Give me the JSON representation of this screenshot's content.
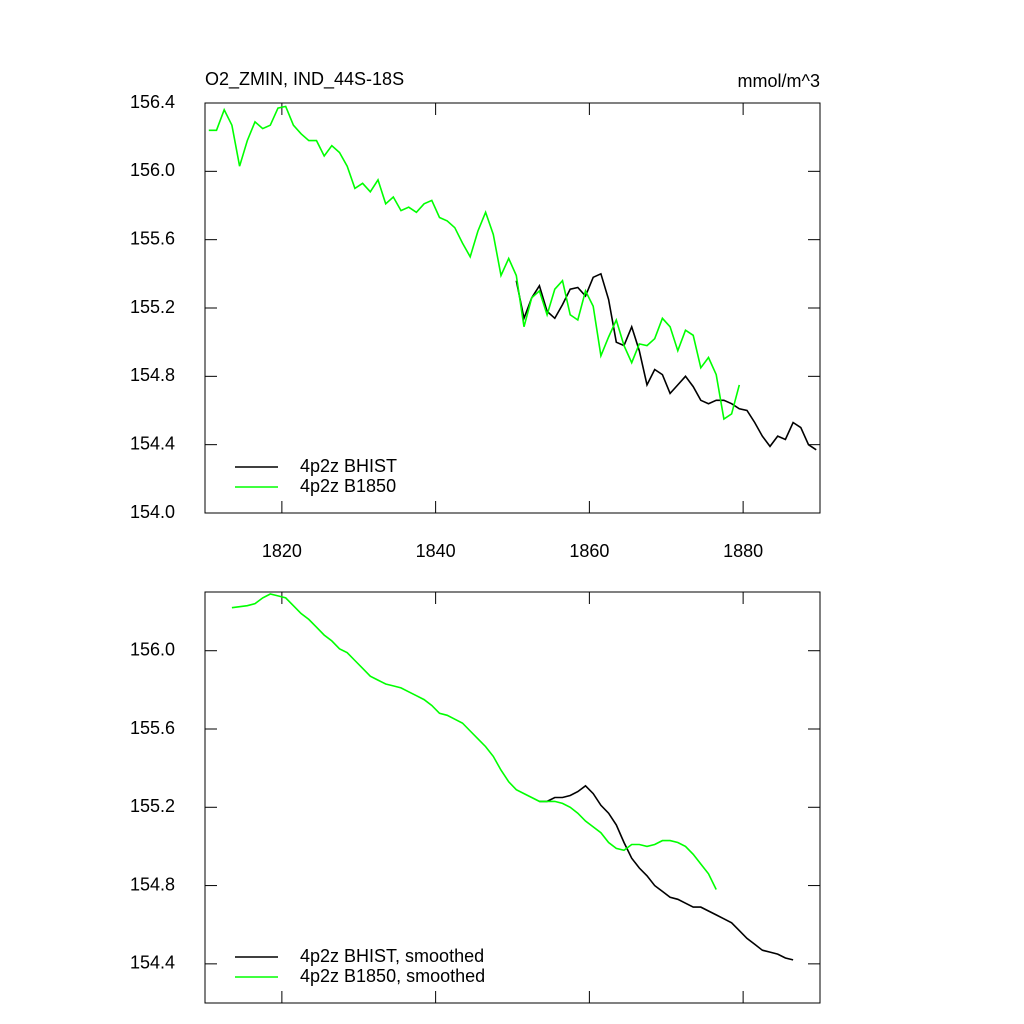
{
  "chart_data": [
    {
      "type": "line",
      "title": "O2_ZMIN, IND_44S-18S",
      "unit_label": "mmol/m^3",
      "xlim": [
        1810,
        1890
      ],
      "xticks": [
        1820,
        1840,
        1860,
        1880
      ],
      "xtick_labels": true,
      "ylim": [
        154.0,
        156.4
      ],
      "yticks": [
        {
          "value": 154.0,
          "label": "154.0"
        },
        154.4,
        154.8,
        {
          "value": 155.2,
          "label": "155.2"
        },
        155.6,
        {
          "value": 156.0,
          "label": "156.0"
        },
        156.4
      ],
      "legend_position": "lower left",
      "series": [
        {
          "name": "4p2z BHIST",
          "color": "#000000",
          "x": [
            1850.5,
            1851.5,
            1852.5,
            1853.5,
            1854.5,
            1855.5,
            1856.5,
            1857.5,
            1858.5,
            1859.5,
            1860.5,
            1861.5,
            1862.5,
            1863.5,
            1864.5,
            1865.5,
            1866.5,
            1867.5,
            1868.5,
            1869.5,
            1870.5,
            1871.5,
            1872.5,
            1873.5,
            1874.5,
            1875.5,
            1876.5,
            1877.5,
            1878.5,
            1879.5,
            1880.5,
            1881.5,
            1882.5,
            1883.5,
            1884.5,
            1885.5,
            1886.5,
            1887.5,
            1888.5,
            1889.5
          ],
          "values": [
            155.36,
            155.14,
            155.26,
            155.33,
            155.18,
            155.14,
            155.22,
            155.31,
            155.32,
            155.27,
            155.38,
            155.4,
            155.25,
            155.0,
            154.98,
            155.09,
            154.95,
            154.75,
            154.84,
            154.81,
            154.7,
            154.75,
            154.8,
            154.74,
            154.66,
            154.64,
            154.66,
            154.66,
            154.64,
            154.61,
            154.6,
            154.53,
            154.45,
            154.39,
            154.45,
            154.43,
            154.53,
            154.5,
            154.4,
            154.37
          ]
        },
        {
          "name": "4p2z B1850",
          "color": "#00ff00",
          "x": [
            1810.5,
            1811.5,
            1812.5,
            1813.5,
            1814.5,
            1815.5,
            1816.5,
            1817.5,
            1818.5,
            1819.5,
            1820.5,
            1821.5,
            1822.5,
            1823.5,
            1824.5,
            1825.5,
            1826.5,
            1827.5,
            1828.5,
            1829.5,
            1830.5,
            1831.5,
            1832.5,
            1833.5,
            1834.5,
            1835.5,
            1836.5,
            1837.5,
            1838.5,
            1839.5,
            1840.5,
            1841.5,
            1842.5,
            1843.5,
            1844.5,
            1845.5,
            1846.5,
            1847.5,
            1848.5,
            1849.5,
            1850.5,
            1851.5,
            1852.5,
            1853.5,
            1854.5,
            1855.5,
            1856.5,
            1857.5,
            1858.5,
            1859.5,
            1860.5,
            1861.5,
            1862.5,
            1863.5,
            1864.5,
            1865.5,
            1866.5,
            1867.5,
            1868.5,
            1869.5,
            1870.5,
            1871.5,
            1872.5,
            1873.5,
            1874.5,
            1875.5,
            1876.5,
            1877.5,
            1878.5,
            1879.5
          ],
          "values": [
            156.24,
            156.24,
            156.36,
            156.27,
            156.03,
            156.18,
            156.29,
            156.25,
            156.27,
            156.37,
            156.38,
            156.27,
            156.22,
            156.18,
            156.18,
            156.09,
            156.15,
            156.11,
            156.03,
            155.9,
            155.93,
            155.88,
            155.95,
            155.81,
            155.85,
            155.77,
            155.79,
            155.76,
            155.81,
            155.83,
            155.73,
            155.71,
            155.67,
            155.58,
            155.5,
            155.65,
            155.76,
            155.63,
            155.39,
            155.49,
            155.39,
            155.09,
            155.26,
            155.3,
            155.16,
            155.31,
            155.36,
            155.16,
            155.13,
            155.3,
            155.21,
            154.92,
            155.03,
            155.13,
            154.98,
            154.88,
            154.99,
            154.98,
            155.02,
            155.14,
            155.09,
            154.95,
            155.07,
            155.04,
            154.85,
            154.91,
            154.81,
            154.55,
            154.58,
            154.75
          ]
        }
      ]
    },
    {
      "type": "line",
      "xlim": [
        1810,
        1890
      ],
      "xticks": [
        1820,
        1840,
        1860,
        1880
      ],
      "xtick_labels": false,
      "ylim": [
        154.2,
        156.3
      ],
      "yticks": [
        154.4,
        154.8,
        {
          "value": 155.2,
          "label": "155.2"
        },
        155.6,
        {
          "value": 156.0,
          "label": "156.0"
        }
      ],
      "legend_position": "lower left",
      "series": [
        {
          "name": "4p2z BHIST, smoothed",
          "color": "#000000",
          "x": [
            1853.5,
            1854.5,
            1855.5,
            1856.5,
            1857.5,
            1858.5,
            1859.5,
            1860.5,
            1861.5,
            1862.5,
            1863.5,
            1864.5,
            1865.5,
            1866.5,
            1867.5,
            1868.5,
            1869.5,
            1870.5,
            1871.5,
            1872.5,
            1873.5,
            1874.5,
            1875.5,
            1876.5,
            1877.5,
            1878.5,
            1879.5,
            1880.5,
            1881.5,
            1882.5,
            1883.5,
            1884.5,
            1885.5,
            1886.5
          ],
          "values": [
            155.23,
            155.23,
            155.25,
            155.25,
            155.26,
            155.28,
            155.31,
            155.27,
            155.21,
            155.17,
            155.11,
            155.02,
            154.94,
            154.89,
            154.85,
            154.8,
            154.77,
            154.74,
            154.73,
            154.71,
            154.69,
            154.69,
            154.67,
            154.65,
            154.63,
            154.61,
            154.57,
            154.53,
            154.5,
            154.47,
            154.46,
            154.45,
            154.43,
            154.42
          ]
        },
        {
          "name": "4p2z B1850, smoothed",
          "color": "#00ff00",
          "x": [
            1813.5,
            1815.5,
            1816.5,
            1817.5,
            1818.5,
            1819.5,
            1820.5,
            1821.5,
            1822.5,
            1823.5,
            1824.5,
            1825.5,
            1826.5,
            1827.5,
            1828.5,
            1829.5,
            1830.5,
            1831.5,
            1832.5,
            1833.5,
            1834.5,
            1835.5,
            1836.5,
            1837.5,
            1838.5,
            1839.5,
            1840.5,
            1841.5,
            1842.5,
            1843.5,
            1844.5,
            1845.5,
            1846.5,
            1847.5,
            1848.5,
            1849.5,
            1850.5,
            1851.5,
            1852.5,
            1853.5,
            1854.5,
            1855.5,
            1856.5,
            1857.5,
            1858.5,
            1859.5,
            1860.5,
            1861.5,
            1862.5,
            1863.5,
            1864.5,
            1865.5,
            1866.5,
            1867.5,
            1868.5,
            1869.5,
            1870.5,
            1871.5,
            1872.5,
            1873.5,
            1874.5,
            1875.5,
            1876.5
          ],
          "values": [
            156.22,
            156.23,
            156.24,
            156.27,
            156.29,
            156.28,
            156.27,
            156.23,
            156.19,
            156.16,
            156.12,
            156.08,
            156.05,
            156.01,
            155.99,
            155.95,
            155.91,
            155.87,
            155.85,
            155.83,
            155.82,
            155.81,
            155.79,
            155.77,
            155.75,
            155.72,
            155.68,
            155.67,
            155.65,
            155.63,
            155.59,
            155.55,
            155.51,
            155.46,
            155.39,
            155.33,
            155.29,
            155.27,
            155.25,
            155.23,
            155.23,
            155.23,
            155.22,
            155.2,
            155.17,
            155.13,
            155.1,
            155.07,
            155.02,
            154.99,
            154.98,
            155.01,
            155.01,
            155.0,
            155.01,
            155.03,
            155.03,
            155.02,
            155.0,
            154.96,
            154.91,
            154.86,
            154.78
          ]
        }
      ]
    }
  ]
}
